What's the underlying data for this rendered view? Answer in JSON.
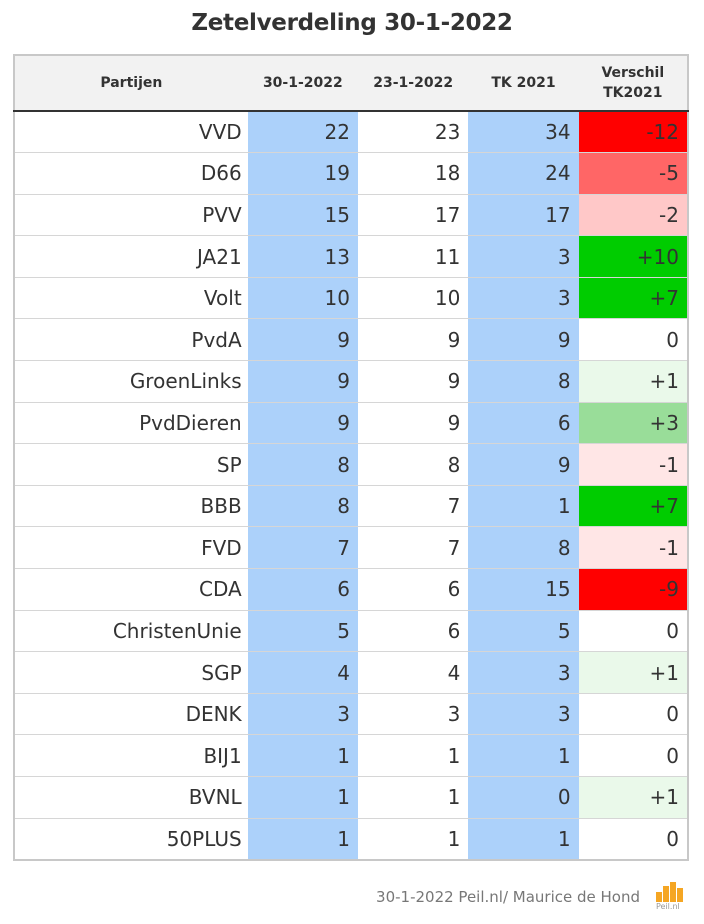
{
  "title": "Zetelverdeling 30-1-2022",
  "footer": "30-1-2022 Peil.nl/ Maurice de Hond",
  "logo_text": "Peil.nl",
  "colors": {
    "column_blue": "#acd1fa",
    "strong_red": "#ff0000",
    "medium_red": "#ff6666",
    "light_red": "#ffc8c8",
    "faint_red": "#ffe6e6",
    "strong_green": "#00cc00",
    "medium_green": "#99dd99",
    "faint_green": "#eaf9ea",
    "neutral": "#ffffff",
    "logo": "#f5a623"
  },
  "chart_data": {
    "type": "table",
    "title": "Zetelverdeling 30-1-2022",
    "columns": [
      "Partijen",
      "30-1-2022",
      "23-1-2022",
      "TK 2021",
      "Verschil TK2021"
    ],
    "rows": [
      {
        "party": "VVD",
        "v1": "22",
        "v2": "23",
        "tk": "34",
        "diff": "-12",
        "diff_value": -12
      },
      {
        "party": "D66",
        "v1": "19",
        "v2": "18",
        "tk": "24",
        "diff": "-5",
        "diff_value": -5
      },
      {
        "party": "PVV",
        "v1": "15",
        "v2": "17",
        "tk": "17",
        "diff": "-2",
        "diff_value": -2
      },
      {
        "party": "JA21",
        "v1": "13",
        "v2": "11",
        "tk": "3",
        "diff": "+10",
        "diff_value": 10
      },
      {
        "party": "Volt",
        "v1": "10",
        "v2": "10",
        "tk": "3",
        "diff": "+7",
        "diff_value": 7
      },
      {
        "party": "PvdA",
        "v1": "9",
        "v2": "9",
        "tk": "9",
        "diff": "0",
        "diff_value": 0
      },
      {
        "party": "GroenLinks",
        "v1": "9",
        "v2": "9",
        "tk": "8",
        "diff": "+1",
        "diff_value": 1
      },
      {
        "party": "PvdDieren",
        "v1": "9",
        "v2": "9",
        "tk": "6",
        "diff": "+3",
        "diff_value": 3
      },
      {
        "party": "SP",
        "v1": "8",
        "v2": "8",
        "tk": "9",
        "diff": "-1",
        "diff_value": -1
      },
      {
        "party": "BBB",
        "v1": "8",
        "v2": "7",
        "tk": "1",
        "diff": "+7",
        "diff_value": 7
      },
      {
        "party": "FVD",
        "v1": "7",
        "v2": "7",
        "tk": "8",
        "diff": "-1",
        "diff_value": -1
      },
      {
        "party": "CDA",
        "v1": "6",
        "v2": "6",
        "tk": "15",
        "diff": "-9",
        "diff_value": -9
      },
      {
        "party": "ChristenUnie",
        "v1": "5",
        "v2": "6",
        "tk": "5",
        "diff": "0",
        "diff_value": 0
      },
      {
        "party": "SGP",
        "v1": "4",
        "v2": "4",
        "tk": "3",
        "diff": "+1",
        "diff_value": 1
      },
      {
        "party": "DENK",
        "v1": "3",
        "v2": "3",
        "tk": "3",
        "diff": "0",
        "diff_value": 0
      },
      {
        "party": "BIJ1",
        "v1": "1",
        "v2": "1",
        "tk": "1",
        "diff": "0",
        "diff_value": 0
      },
      {
        "party": "BVNL",
        "v1": "1",
        "v2": "1",
        "tk": "0",
        "diff": "+1",
        "diff_value": 1
      },
      {
        "party": "50PLUS",
        "v1": "1",
        "v2": "1",
        "tk": "1",
        "diff": "0",
        "diff_value": 0
      }
    ]
  }
}
